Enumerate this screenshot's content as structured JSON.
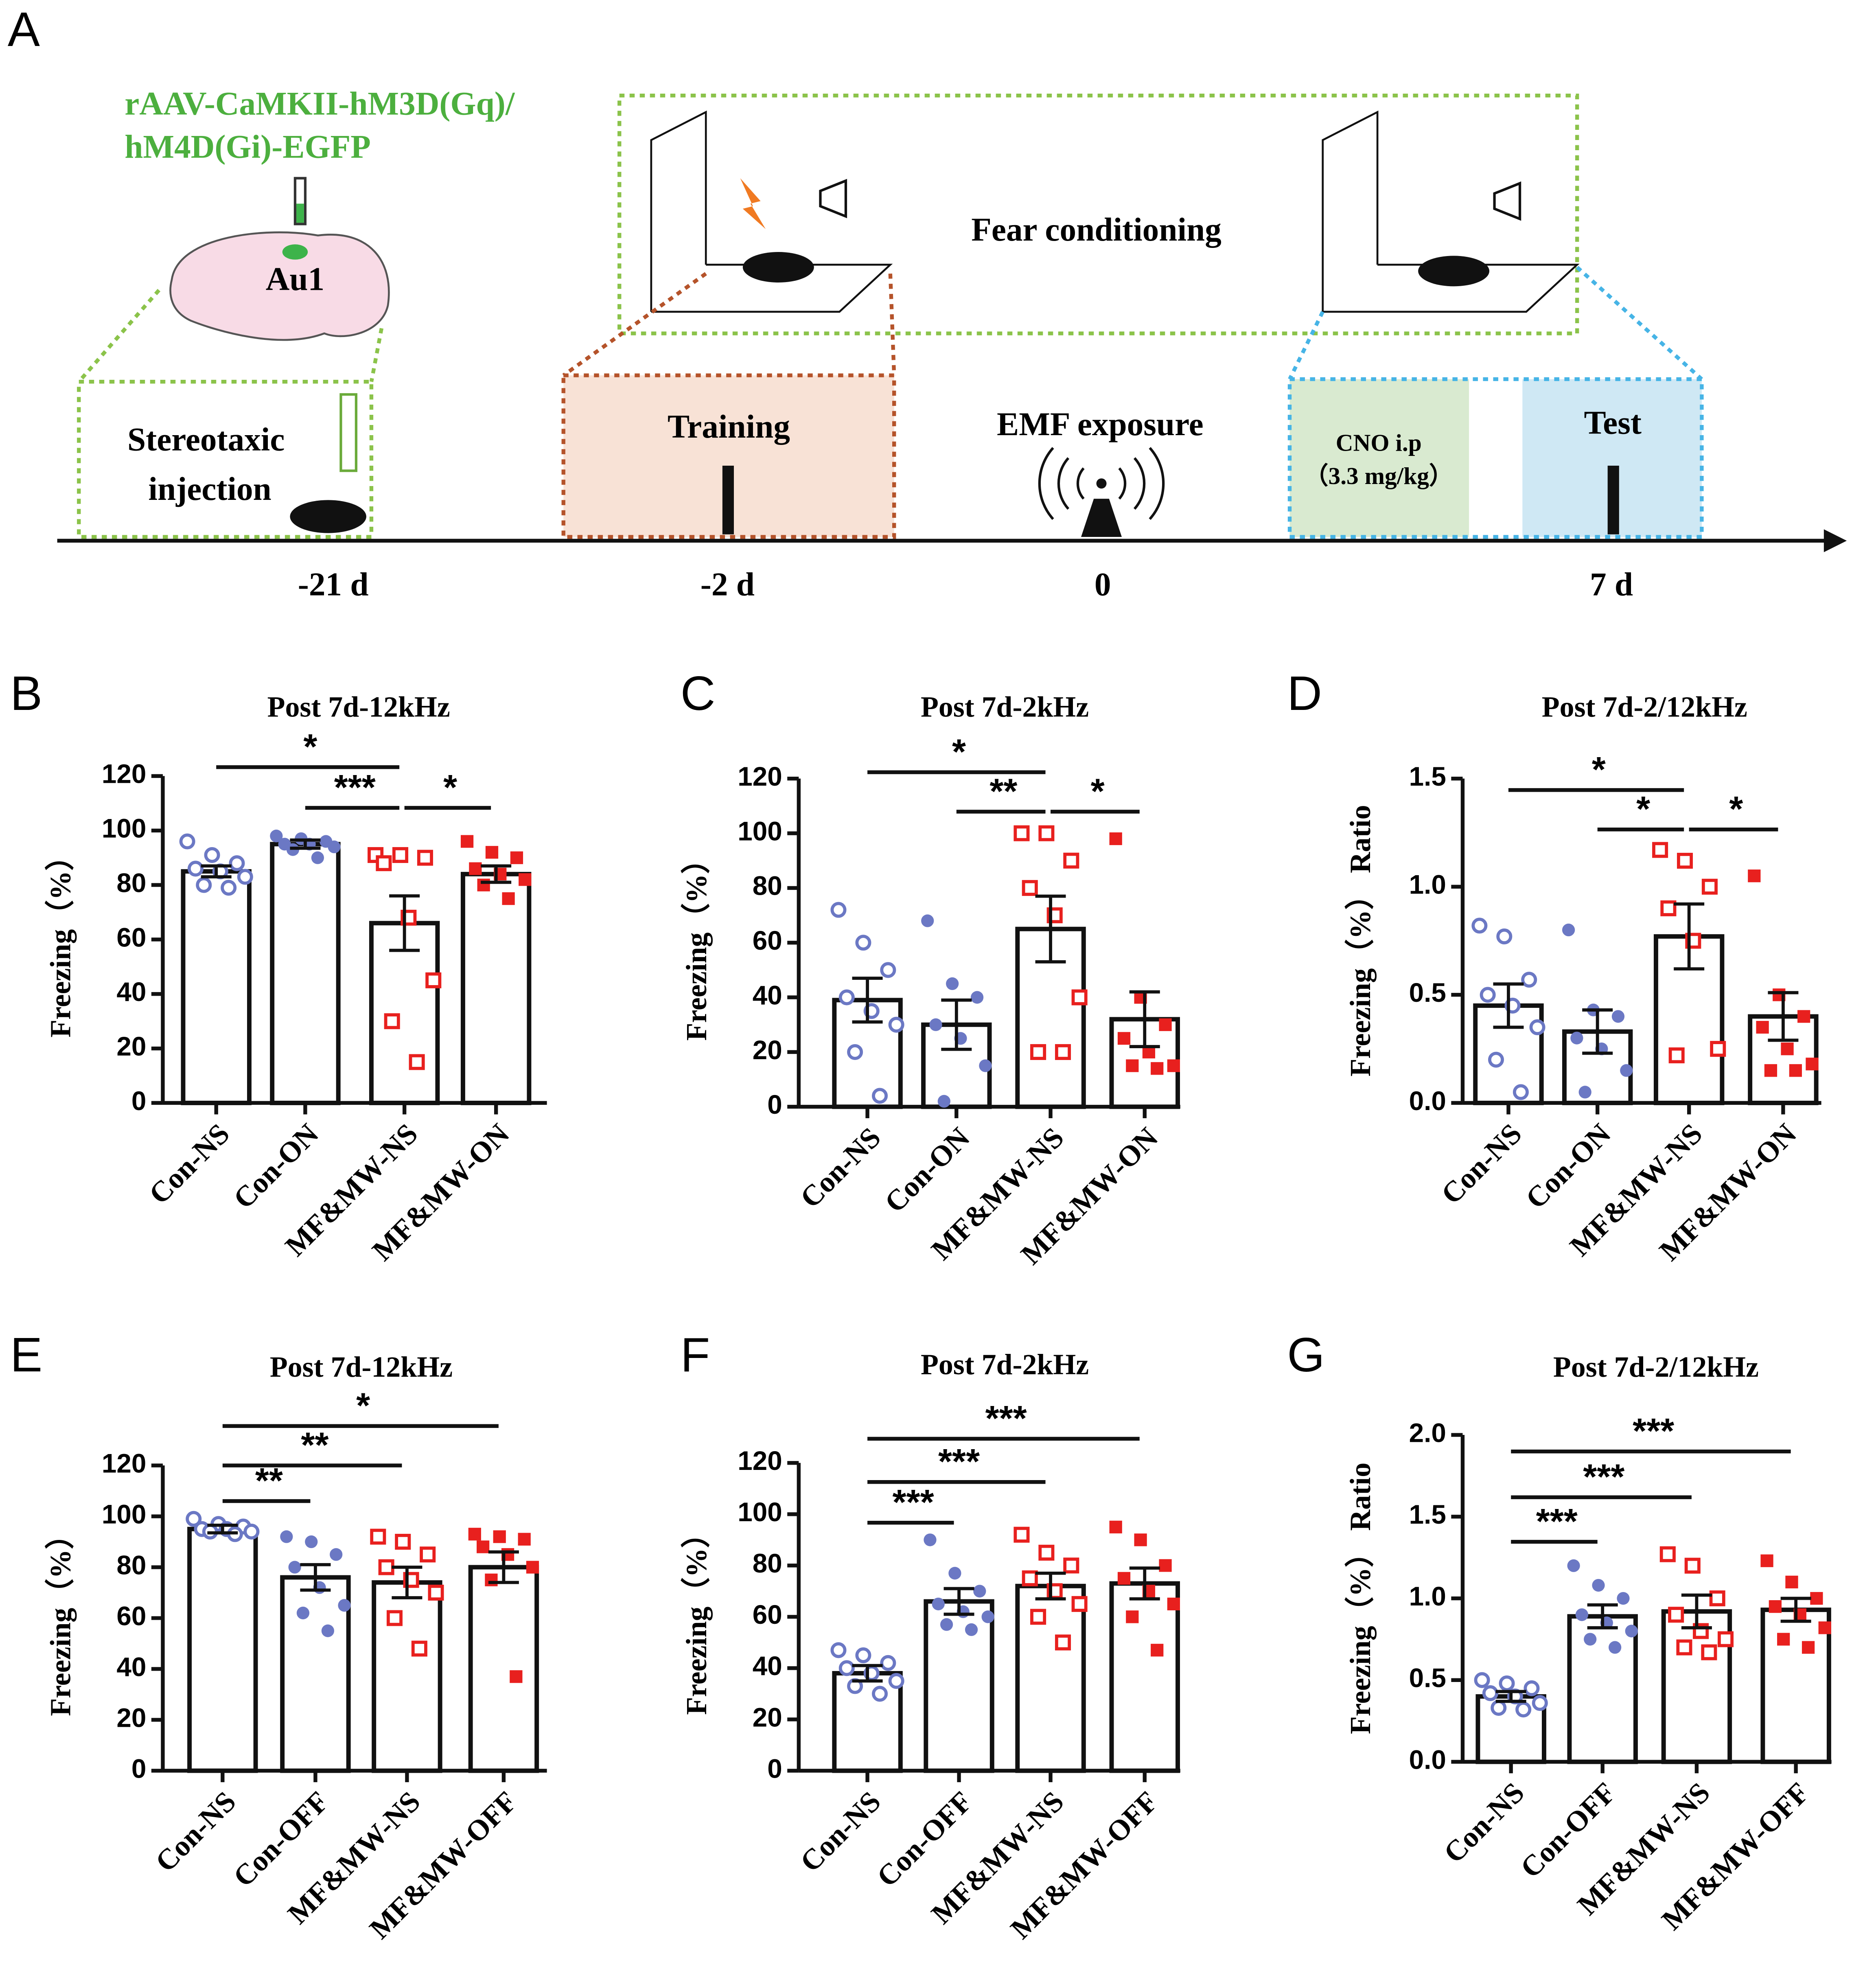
{
  "diagram": {
    "panel": "A",
    "virus_line1": "rAAV-CaMKII-hM3D(Gq)/",
    "virus_line2": "hM4D(Gi)-EGFP",
    "region": "Au1",
    "fear": "Fear conditioning",
    "stereo_line1": "Stereotaxic",
    "stereo_line2": "injection",
    "training": "Training",
    "emf": "EMF exposure",
    "cno": "CNO i.p",
    "dose": "（3.3 mg/kg）",
    "test": "Test",
    "times": [
      "-21 d",
      "-2 d",
      "0",
      "7 d"
    ]
  },
  "chart_data": [
    {
      "type": "bar",
      "panel": "B",
      "title": "Post 7d-12kHz",
      "ylabel": "Freezing（%）",
      "categories": [
        "Con-NS",
        "Con-ON",
        "MF&MW-NS",
        "MF&MW-ON"
      ],
      "values": [
        85,
        95,
        66,
        84
      ],
      "errors": [
        2,
        1.5,
        10,
        3
      ],
      "points": [
        [
          96,
          91,
          88,
          86,
          85,
          83,
          80,
          79
        ],
        [
          98,
          97,
          96,
          95,
          95,
          94,
          93,
          90
        ],
        [
          91,
          91,
          90,
          88,
          68,
          45,
          30,
          15
        ],
        [
          96,
          92,
          90,
          86,
          84,
          82,
          80,
          75
        ]
      ],
      "colors": [
        "#6b78c4",
        "#6b78c4",
        "#e8201e",
        "#e8201e"
      ],
      "markers": [
        "circle-open",
        "circle",
        "square-open",
        "square"
      ],
      "significance": [
        "*",
        "***",
        "*"
      ],
      "ylim": [
        0,
        120
      ],
      "yticks": [
        0,
        20,
        40,
        60,
        80,
        100,
        120
      ]
    },
    {
      "type": "bar",
      "panel": "C",
      "title": "Post 7d-2kHz",
      "ylabel": "Freezing（%）",
      "categories": [
        "Con-NS",
        "Con-ON",
        "MF&MW-NS",
        "MF&MW-ON"
      ],
      "values": [
        39,
        30,
        65,
        32
      ],
      "errors": [
        8,
        9,
        12,
        10
      ],
      "points": [
        [
          72,
          60,
          50,
          40,
          35,
          30,
          20,
          4
        ],
        [
          68,
          45,
          40,
          30,
          25,
          15,
          2
        ],
        [
          100,
          100,
          90,
          80,
          70,
          40,
          20,
          20
        ],
        [
          98,
          40,
          30,
          25,
          20,
          15,
          15,
          14
        ]
      ],
      "colors": [
        "#6b78c4",
        "#6b78c4",
        "#e8201e",
        "#e8201e"
      ],
      "markers": [
        "circle-open",
        "circle",
        "square-open",
        "square"
      ],
      "significance": [
        "*",
        "**",
        "*"
      ],
      "ylim": [
        0,
        120
      ],
      "yticks": [
        0,
        20,
        40,
        60,
        80,
        100,
        120
      ]
    },
    {
      "type": "bar",
      "panel": "D",
      "title": "Post 7d-2/12kHz",
      "ylabel": "Freezing（%） Ratio",
      "categories": [
        "Con-NS",
        "Con-ON",
        "MF&MW-NS",
        "MF&MW-ON"
      ],
      "values": [
        0.45,
        0.33,
        0.77,
        0.4
      ],
      "errors": [
        0.1,
        0.1,
        0.15,
        0.11
      ],
      "points": [
        [
          0.82,
          0.77,
          0.57,
          0.5,
          0.45,
          0.35,
          0.2,
          0.05
        ],
        [
          0.8,
          0.43,
          0.4,
          0.3,
          0.25,
          0.15,
          0.05
        ],
        [
          1.17,
          1.12,
          1.0,
          0.9,
          0.75,
          0.25,
          0.22
        ],
        [
          1.05,
          0.5,
          0.4,
          0.35,
          0.25,
          0.18,
          0.15,
          0.15
        ]
      ],
      "colors": [
        "#6b78c4",
        "#6b78c4",
        "#e8201e",
        "#e8201e"
      ],
      "markers": [
        "circle-open",
        "circle",
        "square-open",
        "square"
      ],
      "significance": [
        "*",
        "*",
        "*"
      ],
      "ylim": [
        0,
        1.5
      ],
      "yticks": [
        {
          "value": 0,
          "label": "0.0"
        },
        0.5,
        {
          "value": 1,
          "label": "1.0"
        },
        1.5
      ]
    },
    {
      "type": "bar",
      "panel": "E",
      "title": "Post 7d-12kHz",
      "ylabel": "Freezing（%）",
      "categories": [
        "Con-NS",
        "Con-OFF",
        "MF&MW-NS",
        "MF&MW-OFF"
      ],
      "values": [
        95,
        76,
        74,
        80
      ],
      "errors": [
        1.5,
        5,
        6,
        6
      ],
      "points": [
        [
          99,
          97,
          96,
          95,
          95,
          94,
          94,
          93
        ],
        [
          92,
          90,
          85,
          80,
          72,
          65,
          62,
          55
        ],
        [
          92,
          90,
          85,
          80,
          75,
          70,
          60,
          48
        ],
        [
          93,
          92,
          91,
          88,
          85,
          80,
          75,
          37
        ]
      ],
      "colors": [
        "#6b78c4",
        "#6b78c4",
        "#e8201e",
        "#e8201e"
      ],
      "markers": [
        "circle-open",
        "circle",
        "square-open",
        "square"
      ],
      "significance": [
        "**",
        "**",
        "*"
      ],
      "ylim": [
        0,
        120
      ],
      "yticks": [
        0,
        20,
        40,
        60,
        80,
        100,
        120
      ]
    },
    {
      "type": "bar",
      "panel": "F",
      "title": "Post 7d-2kHz",
      "ylabel": "Freezing（%）",
      "categories": [
        "Con-NS",
        "Con-OFF",
        "MF&MW-NS",
        "MF&MW-OFF"
      ],
      "values": [
        38,
        66,
        72,
        73
      ],
      "errors": [
        3,
        5,
        5,
        6
      ],
      "points": [
        [
          47,
          45,
          42,
          40,
          38,
          35,
          33,
          30
        ],
        [
          90,
          77,
          70,
          65,
          62,
          60,
          57,
          55
        ],
        [
          92,
          85,
          80,
          75,
          70,
          65,
          60,
          50
        ],
        [
          95,
          90,
          80,
          75,
          70,
          65,
          60,
          47
        ]
      ],
      "colors": [
        "#6b78c4",
        "#6b78c4",
        "#e8201e",
        "#e8201e"
      ],
      "markers": [
        "circle-open",
        "circle",
        "square-open",
        "square"
      ],
      "significance": [
        "***",
        "***",
        "***"
      ],
      "ylim": [
        0,
        120
      ],
      "yticks": [
        0,
        20,
        40,
        60,
        80,
        100,
        120
      ]
    },
    {
      "type": "bar",
      "panel": "G",
      "title": "Post 7d-2/12kHz",
      "ylabel": "Freezing（%） Ratio",
      "categories": [
        "Con-NS",
        "Con-OFF",
        "MF&MW-NS",
        "MF&MW-OFF"
      ],
      "values": [
        0.4,
        0.89,
        0.92,
        0.93
      ],
      "errors": [
        0.03,
        0.07,
        0.1,
        0.07
      ],
      "points": [
        [
          0.5,
          0.48,
          0.45,
          0.42,
          0.4,
          0.36,
          0.33,
          0.32
        ],
        [
          1.2,
          1.08,
          1.0,
          0.9,
          0.85,
          0.8,
          0.75,
          0.7
        ],
        [
          1.27,
          1.2,
          1.0,
          0.9,
          0.8,
          0.75,
          0.7,
          0.67
        ],
        [
          1.23,
          1.1,
          1.0,
          0.95,
          0.9,
          0.82,
          0.75,
          0.7
        ]
      ],
      "colors": [
        "#6b78c4",
        "#6b78c4",
        "#e8201e",
        "#e8201e"
      ],
      "markers": [
        "circle-open",
        "circle",
        "square-open",
        "square"
      ],
      "significance": [
        "***",
        "***",
        "***"
      ],
      "ylim": [
        0,
        2
      ],
      "yticks": [
        {
          "value": 0,
          "label": "0.0"
        },
        0.5,
        {
          "value": 1,
          "label": "1.0"
        },
        1.5,
        {
          "value": 2,
          "label": "2.0"
        }
      ]
    }
  ]
}
